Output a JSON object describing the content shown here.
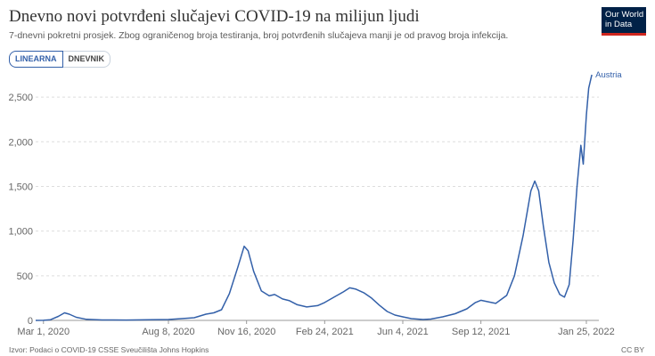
{
  "header": {
    "title": "Dnevno novi potvrđeni slučajevi COVID-19 na milijun ljudi",
    "subtitle": "7-dnevni pokretni prosjek. Zbog ograničenog broja testiranja, broj potvrđenih slučajeva manji je od pravog broja infekcija.",
    "logo_line1": "Our World",
    "logo_line2": "in Data"
  },
  "tabs": [
    {
      "label": "LINEARNA",
      "active": true
    },
    {
      "label": "DNEVNIK",
      "active": false
    }
  ],
  "footer": {
    "source": "Izvor: Podaci o COVID-19 CSSE Sveučilišta Johns Hopkins",
    "license": "CC BY"
  },
  "colors": {
    "series": "#3360a9",
    "grid": "#dddddd",
    "logo_bg": "#002147",
    "logo_accent": "#ce261e"
  },
  "chart_data": {
    "type": "line",
    "title": "Dnevno novi potvrđeni slučajevi COVID-19 na milijun ljudi",
    "xlabel": "",
    "ylabel": "",
    "ylim": [
      0,
      2750
    ],
    "xlim": [
      "2020-02-20",
      "2022-02-10"
    ],
    "grid": "horizontal dashed",
    "y_ticks": [
      0,
      500,
      1000,
      1500,
      2000,
      2500
    ],
    "y_tick_labels": [
      "0",
      "500",
      "1,000",
      "1,500",
      "2,000",
      "2,500"
    ],
    "x_ticks": [
      "2020-03-01",
      "2020-08-08",
      "2020-11-16",
      "2021-02-24",
      "2021-06-04",
      "2021-09-12",
      "2022-01-25"
    ],
    "x_tick_labels": [
      "Mar 1, 2020",
      "Aug 8, 2020",
      "Nov 16, 2020",
      "Feb 24, 2021",
      "Jun 4, 2021",
      "Sep 12, 2021",
      "Jan 25, 2022"
    ],
    "series": [
      {
        "name": "Austria",
        "points": [
          [
            "2020-02-20",
            0
          ],
          [
            "2020-03-01",
            1
          ],
          [
            "2020-03-10",
            8
          ],
          [
            "2020-03-20",
            45
          ],
          [
            "2020-03-28",
            85
          ],
          [
            "2020-04-03",
            70
          ],
          [
            "2020-04-12",
            35
          ],
          [
            "2020-04-25",
            12
          ],
          [
            "2020-05-15",
            5
          ],
          [
            "2020-06-15",
            4
          ],
          [
            "2020-07-15",
            8
          ],
          [
            "2020-08-08",
            10
          ],
          [
            "2020-08-25",
            20
          ],
          [
            "2020-09-10",
            30
          ],
          [
            "2020-09-25",
            70
          ],
          [
            "2020-10-05",
            85
          ],
          [
            "2020-10-15",
            120
          ],
          [
            "2020-10-25",
            300
          ],
          [
            "2020-11-05",
            600
          ],
          [
            "2020-11-13",
            830
          ],
          [
            "2020-11-18",
            780
          ],
          [
            "2020-11-25",
            550
          ],
          [
            "2020-12-05",
            330
          ],
          [
            "2020-12-15",
            275
          ],
          [
            "2020-12-22",
            290
          ],
          [
            "2021-01-01",
            240
          ],
          [
            "2021-01-10",
            220
          ],
          [
            "2021-01-20",
            175
          ],
          [
            "2021-02-01",
            150
          ],
          [
            "2021-02-15",
            165
          ],
          [
            "2021-02-24",
            200
          ],
          [
            "2021-03-08",
            260
          ],
          [
            "2021-03-20",
            320
          ],
          [
            "2021-03-28",
            365
          ],
          [
            "2021-04-05",
            350
          ],
          [
            "2021-04-15",
            310
          ],
          [
            "2021-04-25",
            250
          ],
          [
            "2021-05-05",
            170
          ],
          [
            "2021-05-15",
            100
          ],
          [
            "2021-05-25",
            60
          ],
          [
            "2021-06-04",
            40
          ],
          [
            "2021-06-15",
            20
          ],
          [
            "2021-06-30",
            10
          ],
          [
            "2021-07-10",
            15
          ],
          [
            "2021-07-25",
            40
          ],
          [
            "2021-08-10",
            75
          ],
          [
            "2021-08-25",
            130
          ],
          [
            "2021-09-05",
            200
          ],
          [
            "2021-09-12",
            225
          ],
          [
            "2021-09-20",
            210
          ],
          [
            "2021-10-01",
            190
          ],
          [
            "2021-10-15",
            280
          ],
          [
            "2021-10-25",
            500
          ],
          [
            "2021-11-05",
            950
          ],
          [
            "2021-11-15",
            1450
          ],
          [
            "2021-11-20",
            1560
          ],
          [
            "2021-11-25",
            1450
          ],
          [
            "2021-12-01",
            1050
          ],
          [
            "2021-12-08",
            650
          ],
          [
            "2021-12-15",
            420
          ],
          [
            "2021-12-22",
            290
          ],
          [
            "2021-12-28",
            260
          ],
          [
            "2022-01-03",
            400
          ],
          [
            "2022-01-08",
            900
          ],
          [
            "2022-01-13",
            1500
          ],
          [
            "2022-01-18",
            1960
          ],
          [
            "2022-01-21",
            1750
          ],
          [
            "2022-01-25",
            2300
          ],
          [
            "2022-01-28",
            2600
          ],
          [
            "2022-02-01",
            2750
          ]
        ]
      }
    ]
  }
}
